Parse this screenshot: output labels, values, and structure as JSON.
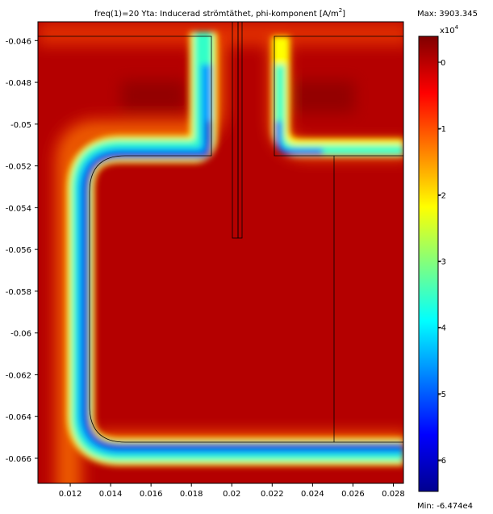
{
  "chart_data": {
    "type": "heatmap",
    "title": "freq(1)=20    Yta: Inducerad strömtäthet, phi-komponent [A/m",
    "title_superscript": "2",
    "title_suffix": "]",
    "xlabel": "",
    "ylabel": "",
    "xlim": [
      0.0104,
      0.0285
    ],
    "ylim": [
      -0.0672,
      -0.0451
    ],
    "x_ticks": [
      0.012,
      0.014,
      0.016,
      0.018,
      0.02,
      0.022,
      0.024,
      0.026,
      0.028
    ],
    "x_tick_labels": [
      "0.012",
      "0.014",
      "0.016",
      "0.018",
      "0.02",
      "0.022",
      "0.024",
      "0.026",
      "0.028"
    ],
    "y_ticks": [
      -0.046,
      -0.048,
      -0.05,
      -0.052,
      -0.054,
      -0.056,
      -0.058,
      -0.06,
      -0.062,
      -0.064,
      -0.066
    ],
    "y_tick_labels": [
      "-0.046",
      "-0.048",
      "-0.05",
      "-0.052",
      "-0.054",
      "-0.056",
      "-0.058",
      "-0.06",
      "-0.062",
      "-0.064",
      "-0.066"
    ],
    "colorbar": {
      "max_label": "Max: 3903.345",
      "min_label": "Min: -6.474e4",
      "multiplier": "x10",
      "multiplier_exponent": "4",
      "vmin": -6.474,
      "vmax": 0.3903,
      "ticks": [
        0,
        -1,
        -2,
        -3,
        -4,
        -5,
        -6
      ],
      "tick_labels": [
        "0",
        "-1",
        "-2",
        "-3",
        "-4",
        "-5",
        "-6"
      ],
      "colormap": "jet"
    },
    "grid": false
  },
  "colors": {
    "background_field": "#b40000",
    "band_low": "#00008c",
    "band_mid": "#00b4ff",
    "band_high": "#ffff00"
  }
}
